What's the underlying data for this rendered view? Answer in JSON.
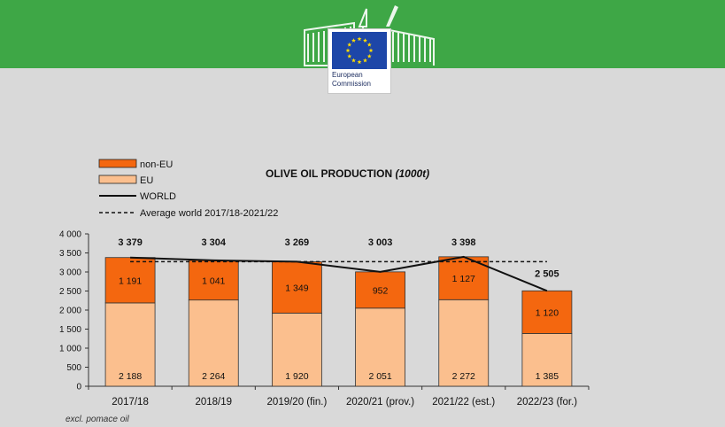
{
  "header": {
    "logo_icon": "european-commission-logo",
    "logo_text": "European\nCommission",
    "band_color": "#3ea746",
    "flag_color": "#1d46a8",
    "star_color": "#ffdd00"
  },
  "footnote": "excl. pomace oil",
  "chart_data": {
    "type": "bar",
    "stacked": true,
    "title": "OLIVE OIL PRODUCTION",
    "title_unit": "(1000t)",
    "categories": [
      "2017/18",
      "2018/19",
      "2019/20 (fin.)",
      "2020/21 (prov.)",
      "2021/22 (est.)",
      "2022/23 (for.)"
    ],
    "series": [
      {
        "name": "EU",
        "color": "#fbbf8e",
        "values": [
          2188,
          2264,
          1920,
          2051,
          2272,
          1385
        ],
        "labels": [
          "2 188",
          "2 264",
          "1 920",
          "2 051",
          "2 272",
          "1 385"
        ]
      },
      {
        "name": "non-EU",
        "color": "#f4670f",
        "values": [
          1191,
          1041,
          1349,
          952,
          1127,
          1120
        ],
        "labels": [
          "1 191",
          "1 041",
          "1 349",
          "952",
          "1 127",
          "1 120"
        ]
      }
    ],
    "lines": [
      {
        "name": "WORLD",
        "style": "solid",
        "values": [
          3379,
          3304,
          3269,
          3003,
          3398,
          2505
        ],
        "labels": [
          "3 379",
          "3 304",
          "3 269",
          "3 003",
          "3 398",
          "2 505"
        ]
      },
      {
        "name": "Average world 2017/18-2021/22",
        "style": "dashed",
        "value": 3270
      }
    ],
    "yticks": [
      0,
      500,
      1000,
      1500,
      2000,
      2500,
      3000,
      3500,
      4000
    ],
    "ytick_labels": [
      "0",
      "500",
      "1 000",
      "1 500",
      "2 000",
      "2 500",
      "3 000",
      "3 500",
      "4 000"
    ],
    "ylim": [
      0,
      4000
    ],
    "legend_position": "top-left",
    "grid": false
  }
}
